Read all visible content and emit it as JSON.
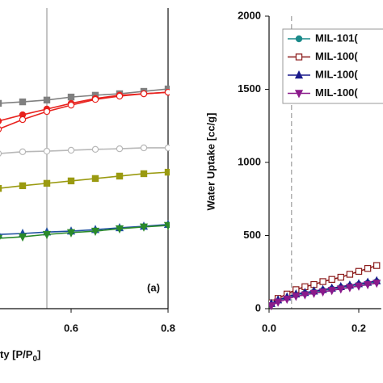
{
  "chart_data": [
    {
      "type": "line",
      "annotation": "(a)",
      "xlabel_parts": [
        "ty [P/P",
        "0",
        "]"
      ],
      "xlim": [
        0.45,
        0.8
      ],
      "xticks": [
        0.6,
        0.8
      ],
      "ylim": [
        0,
        100
      ],
      "vline": 0.55,
      "vline_color": "#b0b0b0",
      "x": [
        0.45,
        0.5,
        0.55,
        0.6,
        0.65,
        0.7,
        0.75,
        0.8
      ],
      "series": [
        {
          "color": "#808080",
          "marker": "square",
          "values": [
            68.3,
            68.8,
            69.4,
            70.4,
            71,
            71.5,
            72.3,
            73.1
          ]
        },
        {
          "color": "#e8221e",
          "marker": "circle",
          "values": [
            62.4,
            64.5,
            66.4,
            68.3,
            69.9,
            71,
            71.5,
            72
          ]
        },
        {
          "color": "#e8221e",
          "marker": "circle-open",
          "values": [
            59.7,
            62.9,
            65.6,
            67.7,
            69.6,
            70.7,
            71.5,
            72
          ]
        },
        {
          "color": "#b8b8b8",
          "marker": "circle-open",
          "values": [
            51.6,
            52.2,
            52.4,
            52.7,
            53,
            53.2,
            53.5,
            53.5
          ]
        },
        {
          "color": "#9a9a10",
          "marker": "square",
          "values": [
            40,
            40.9,
            41.7,
            42.5,
            43.3,
            44.1,
            44.9,
            45.4
          ]
        },
        {
          "color": "#1e4fa0",
          "marker": "triangle",
          "values": [
            24.7,
            25,
            25.5,
            25.8,
            26.3,
            26.9,
            27.4,
            28
          ]
        },
        {
          "color": "#2a8a2a",
          "marker": "triangle-down",
          "values": [
            23.4,
            23.9,
            24.7,
            25.3,
            25.8,
            26.6,
            27.2,
            27.7
          ]
        }
      ]
    },
    {
      "type": "line",
      "ylabel": "Water Uptake [cc/g]",
      "xlim": [
        0,
        0.25
      ],
      "xticks": [
        {
          "value": 0,
          "label": "0.0"
        },
        0.2
      ],
      "ylim": [
        0,
        2000
      ],
      "yticks": [
        0,
        500,
        1000,
        1500,
        2000
      ],
      "vline": 0.05,
      "vline_color": "#b0b0b0",
      "x": [
        0.005,
        0.02,
        0.04,
        0.06,
        0.08,
        0.1,
        0.12,
        0.14,
        0.16,
        0.18,
        0.2,
        0.22,
        0.24
      ],
      "series": [
        {
          "name": "MIL-101(",
          "color": "#1a8a8a",
          "marker": "circle",
          "values": [
            30,
            55,
            75,
            95,
            105,
            115,
            125,
            135,
            145,
            155,
            165,
            175,
            185
          ]
        },
        {
          "name": "MIL-100(",
          "color": "#8b1a1a",
          "marker": "square-open",
          "values": [
            40,
            70,
            100,
            130,
            150,
            165,
            185,
            200,
            215,
            235,
            255,
            275,
            295
          ]
        },
        {
          "name": "MIL-100(",
          "color": "#1a1a8b",
          "marker": "triangle",
          "values": [
            35,
            60,
            80,
            100,
            110,
            120,
            130,
            140,
            150,
            160,
            170,
            180,
            190
          ]
        },
        {
          "name": "MIL-100(",
          "color": "#8b1a8b",
          "marker": "triangle-down",
          "values": [
            20,
            45,
            65,
            85,
            95,
            105,
            115,
            125,
            135,
            145,
            155,
            165,
            175
          ]
        }
      ]
    }
  ]
}
